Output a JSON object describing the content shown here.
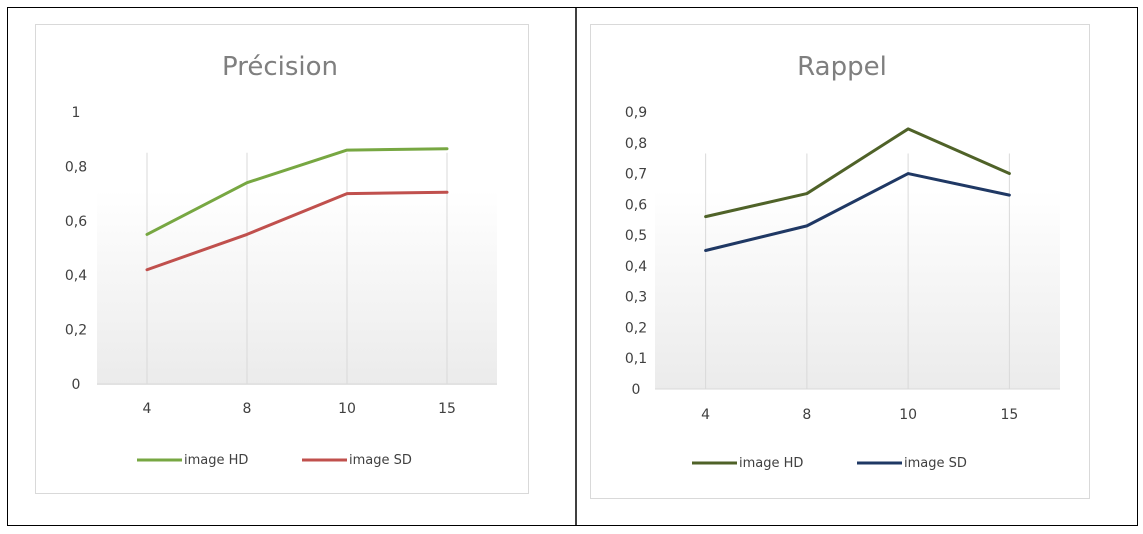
{
  "chart_data": [
    {
      "type": "line",
      "title": "Précision",
      "categories": [
        "4",
        "8",
        "10",
        "15"
      ],
      "ylim": [
        0,
        1
      ],
      "y_ticks": [
        "0",
        "0,2",
        "0,4",
        "0,6",
        "0,8",
        "1"
      ],
      "grid": "vertical",
      "legend_position": "bottom",
      "series": [
        {
          "name": "image HD",
          "values": [
            0.55,
            0.74,
            0.86,
            0.865
          ],
          "color": "#77a742"
        },
        {
          "name": "image SD",
          "values": [
            0.42,
            0.55,
            0.7,
            0.705
          ],
          "color": "#c0504d"
        }
      ]
    },
    {
      "type": "line",
      "title": "Rappel",
      "categories": [
        "4",
        "8",
        "10",
        "15"
      ],
      "ylim": [
        0,
        0.9
      ],
      "y_ticks": [
        "0",
        "0,1",
        "0,2",
        "0,3",
        "0,4",
        "0,5",
        "0,6",
        "0,7",
        "0,8",
        "0,9"
      ],
      "grid": "vertical",
      "legend_position": "bottom",
      "series": [
        {
          "name": "image HD",
          "values": [
            0.56,
            0.635,
            0.845,
            0.7
          ],
          "color": "#4f6228"
        },
        {
          "name": "image SD",
          "values": [
            0.45,
            0.53,
            0.7,
            0.63
          ],
          "color": "#1f3864"
        }
      ]
    }
  ]
}
